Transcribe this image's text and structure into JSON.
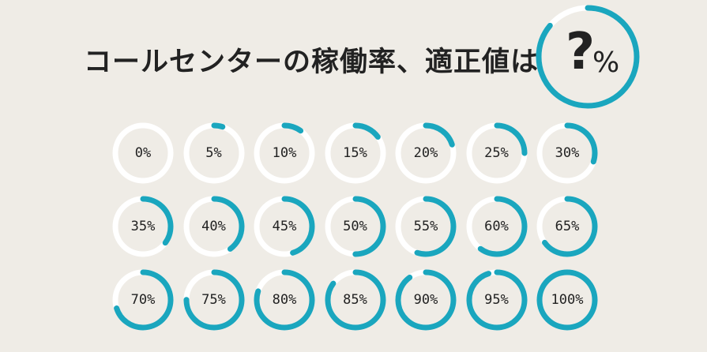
{
  "title": "コールセンターの稼働率、適正値は",
  "headline_unknown": {
    "symbol": "?",
    "unit": "%"
  },
  "colors": {
    "background": "#efece6",
    "track": "#ffffff",
    "accent": "#1aa6be",
    "text": "#222222"
  },
  "rings": [
    {
      "label": "0%",
      "value": 0
    },
    {
      "label": "5%",
      "value": 5
    },
    {
      "label": "10%",
      "value": 10
    },
    {
      "label": "15%",
      "value": 15
    },
    {
      "label": "20%",
      "value": 20
    },
    {
      "label": "25%",
      "value": 25
    },
    {
      "label": "30%",
      "value": 30
    },
    {
      "label": "35%",
      "value": 35
    },
    {
      "label": "40%",
      "value": 40
    },
    {
      "label": "45%",
      "value": 45
    },
    {
      "label": "50%",
      "value": 50
    },
    {
      "label": "55%",
      "value": 55
    },
    {
      "label": "60%",
      "value": 60
    },
    {
      "label": "65%",
      "value": 65
    },
    {
      "label": "70%",
      "value": 70
    },
    {
      "label": "75%",
      "value": 75
    },
    {
      "label": "80%",
      "value": 80
    },
    {
      "label": "85%",
      "value": 85
    },
    {
      "label": "90%",
      "value": 90
    },
    {
      "label": "95%",
      "value": 95
    },
    {
      "label": "100%",
      "value": 100
    }
  ]
}
